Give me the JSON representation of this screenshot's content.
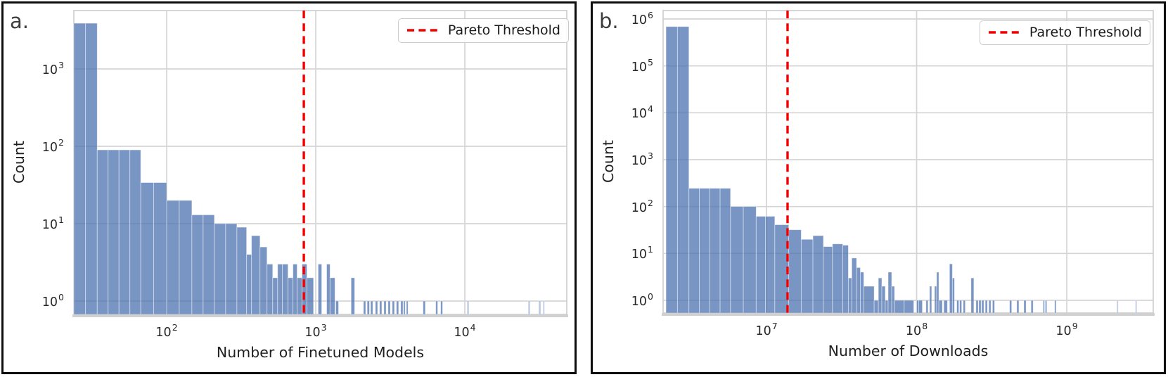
{
  "figure": {
    "background": "#ffffff",
    "panels": [
      {
        "letter": "a.",
        "xlabel": "Number of Finetuned Models",
        "ylabel": "Count",
        "legend_label": "Pareto Threshold"
      },
      {
        "letter": "b.",
        "xlabel": "Number of Downloads",
        "ylabel": "Count",
        "legend_label": "Pareto Threshold"
      }
    ]
  },
  "colors": {
    "bar_fill": "#4c72b0",
    "bar_fill_effective": "#7b94c6",
    "bar_edge": "#ffffff",
    "grid": "#d4d4d4",
    "plot_frame": "#cfcfcf",
    "bottom_spine": "#d0d0d0",
    "threshold_red": "#f10000",
    "panel_border": "#0d0d0d",
    "text": "#262626"
  },
  "chart_data": [
    {
      "type": "bar",
      "subtype": "log-log histogram",
      "panel": "a.",
      "title": "",
      "xlabel": "Number of Finetuned Models",
      "ylabel": "Count",
      "xscale": "log",
      "yscale": "log",
      "grid": true,
      "legend": {
        "label": "Pareto Threshold",
        "position": "upper right"
      },
      "xlim": [
        24,
        48000
      ],
      "ylim": [
        0.67,
        5700
      ],
      "xlim_log10": [
        1.377,
        4.684
      ],
      "ylim_log10": [
        -0.173,
        3.755
      ],
      "xtick_exponents": [
        2,
        3,
        4
      ],
      "ytick_exponents": [
        0,
        1,
        2,
        3
      ],
      "xtick_labels": [
        "10^2",
        "10^3",
        "10^4"
      ],
      "ytick_labels": [
        "10^0",
        "10^1",
        "10^2",
        "10^3"
      ],
      "pareto_threshold_x": 830,
      "pareto_threshold_log10": 2.92,
      "bars_log10_left_right_count": [
        [
          1.377,
          1.534,
          3900
        ],
        [
          1.534,
          1.826,
          90
        ],
        [
          1.826,
          2.0,
          34
        ],
        [
          2.0,
          2.169,
          20
        ],
        [
          2.169,
          2.32,
          13
        ],
        [
          2.32,
          2.471,
          10
        ],
        [
          2.471,
          2.536,
          9
        ],
        [
          2.536,
          2.569,
          4
        ],
        [
          2.569,
          2.626,
          7
        ],
        [
          2.626,
          2.673,
          5
        ],
        [
          2.673,
          2.711,
          3
        ],
        [
          2.711,
          2.744,
          2
        ],
        [
          2.744,
          2.776,
          3
        ],
        [
          2.776,
          2.814,
          3
        ],
        [
          2.814,
          2.847,
          2
        ],
        [
          2.847,
          2.875,
          3
        ],
        [
          2.875,
          2.908,
          2
        ],
        [
          2.908,
          2.941,
          3
        ],
        [
          2.941,
          2.985,
          2
        ],
        [
          3.016,
          3.04,
          3
        ],
        [
          3.073,
          3.096,
          3
        ],
        [
          3.096,
          3.129,
          2
        ],
        [
          3.134,
          3.153,
          1
        ],
        [
          3.237,
          3.261,
          2
        ],
        [
          3.32,
          3.335,
          1
        ],
        [
          3.345,
          3.36,
          1
        ],
        [
          3.368,
          3.383,
          1
        ],
        [
          3.4,
          3.415,
          1
        ],
        [
          3.428,
          3.443,
          1
        ],
        [
          3.457,
          3.472,
          1
        ],
        [
          3.485,
          3.5,
          1
        ],
        [
          3.513,
          3.528,
          1
        ],
        [
          3.541,
          3.556,
          1
        ],
        [
          3.57,
          3.585,
          1
        ],
        [
          3.589,
          3.6,
          1
        ],
        [
          3.608,
          3.619,
          1
        ],
        [
          3.72,
          3.735,
          1
        ],
        [
          3.805,
          3.818,
          1
        ],
        [
          3.838,
          3.851,
          1
        ],
        [
          4.015,
          4.028,
          1,
          0.5
        ],
        [
          4.425,
          4.438,
          1,
          0.5
        ],
        [
          4.495,
          4.51,
          1,
          0.5
        ],
        [
          4.525,
          4.535,
          1,
          0.5
        ]
      ]
    },
    {
      "type": "bar",
      "subtype": "log-log histogram",
      "panel": "b.",
      "title": "",
      "xlabel": "Number of Downloads",
      "ylabel": "Count",
      "xscale": "log",
      "yscale": "log",
      "grid": true,
      "legend": {
        "label": "Pareto Threshold",
        "position": "upper right"
      },
      "xlim": [
        2050000,
        3770000000
      ],
      "ylim": [
        0.54,
        1510000
      ],
      "xlim_log10": [
        6.311,
        9.576
      ],
      "ylim_log10": [
        -0.27,
        6.18
      ],
      "xtick_exponents": [
        7,
        8,
        9
      ],
      "ytick_exponents": [
        0,
        1,
        2,
        3,
        4,
        5,
        6
      ],
      "xtick_labels": [
        "10^7",
        "10^8",
        "10^9"
      ],
      "ytick_labels": [
        "10^0",
        "10^1",
        "10^2",
        "10^3",
        "10^4",
        "10^5",
        "10^6"
      ],
      "pareto_threshold_x": 14000000,
      "pareto_threshold_log10": 7.14,
      "bars_log10_left_right_count": [
        [
          6.33,
          6.483,
          690000
        ],
        [
          6.483,
          6.76,
          245
        ],
        [
          6.76,
          6.931,
          100
        ],
        [
          6.931,
          7.055,
          62
        ],
        [
          7.055,
          7.148,
          41
        ],
        [
          7.148,
          7.231,
          32
        ],
        [
          7.231,
          7.309,
          20
        ],
        [
          7.309,
          7.379,
          24
        ],
        [
          7.379,
          7.439,
          14
        ],
        [
          7.439,
          7.508,
          16
        ],
        [
          7.508,
          7.545,
          15
        ],
        [
          7.545,
          7.568,
          3
        ],
        [
          7.568,
          7.6,
          8
        ],
        [
          7.6,
          7.625,
          5
        ],
        [
          7.625,
          7.648,
          4
        ],
        [
          7.648,
          7.717,
          2
        ],
        [
          7.717,
          7.745,
          1
        ],
        [
          7.745,
          7.768,
          3
        ],
        [
          7.768,
          7.791,
          2
        ],
        [
          7.791,
          7.81,
          1
        ],
        [
          7.81,
          7.834,
          4
        ],
        [
          7.834,
          7.853,
          2
        ],
        [
          7.853,
          7.981,
          1
        ],
        [
          8.0,
          8.014,
          1
        ],
        [
          8.014,
          8.038,
          1
        ],
        [
          8.062,
          8.076,
          1
        ],
        [
          8.086,
          8.1,
          2
        ],
        [
          8.119,
          8.133,
          2
        ],
        [
          8.133,
          8.148,
          4
        ],
        [
          8.148,
          8.171,
          1
        ],
        [
          8.181,
          8.205,
          1
        ],
        [
          8.219,
          8.238,
          6
        ],
        [
          8.238,
          8.252,
          3
        ],
        [
          8.267,
          8.281,
          1
        ],
        [
          8.286,
          8.3,
          1
        ],
        [
          8.31,
          8.324,
          1
        ],
        [
          8.362,
          8.381,
          3
        ],
        [
          8.395,
          8.41,
          1
        ],
        [
          8.414,
          8.429,
          1
        ],
        [
          8.433,
          8.448,
          1
        ],
        [
          8.457,
          8.471,
          1
        ],
        [
          8.481,
          8.495,
          1
        ],
        [
          8.505,
          8.519,
          1
        ],
        [
          8.619,
          8.633,
          1
        ],
        [
          8.667,
          8.681,
          1
        ],
        [
          8.714,
          8.729,
          1
        ],
        [
          8.762,
          8.776,
          1
        ],
        [
          8.843,
          8.852,
          1
        ],
        [
          8.857,
          8.867,
          1
        ],
        [
          8.919,
          8.929,
          1
        ],
        [
          9.333,
          9.343,
          1,
          0.5
        ],
        [
          9.457,
          9.467,
          1,
          0.5
        ]
      ]
    }
  ]
}
